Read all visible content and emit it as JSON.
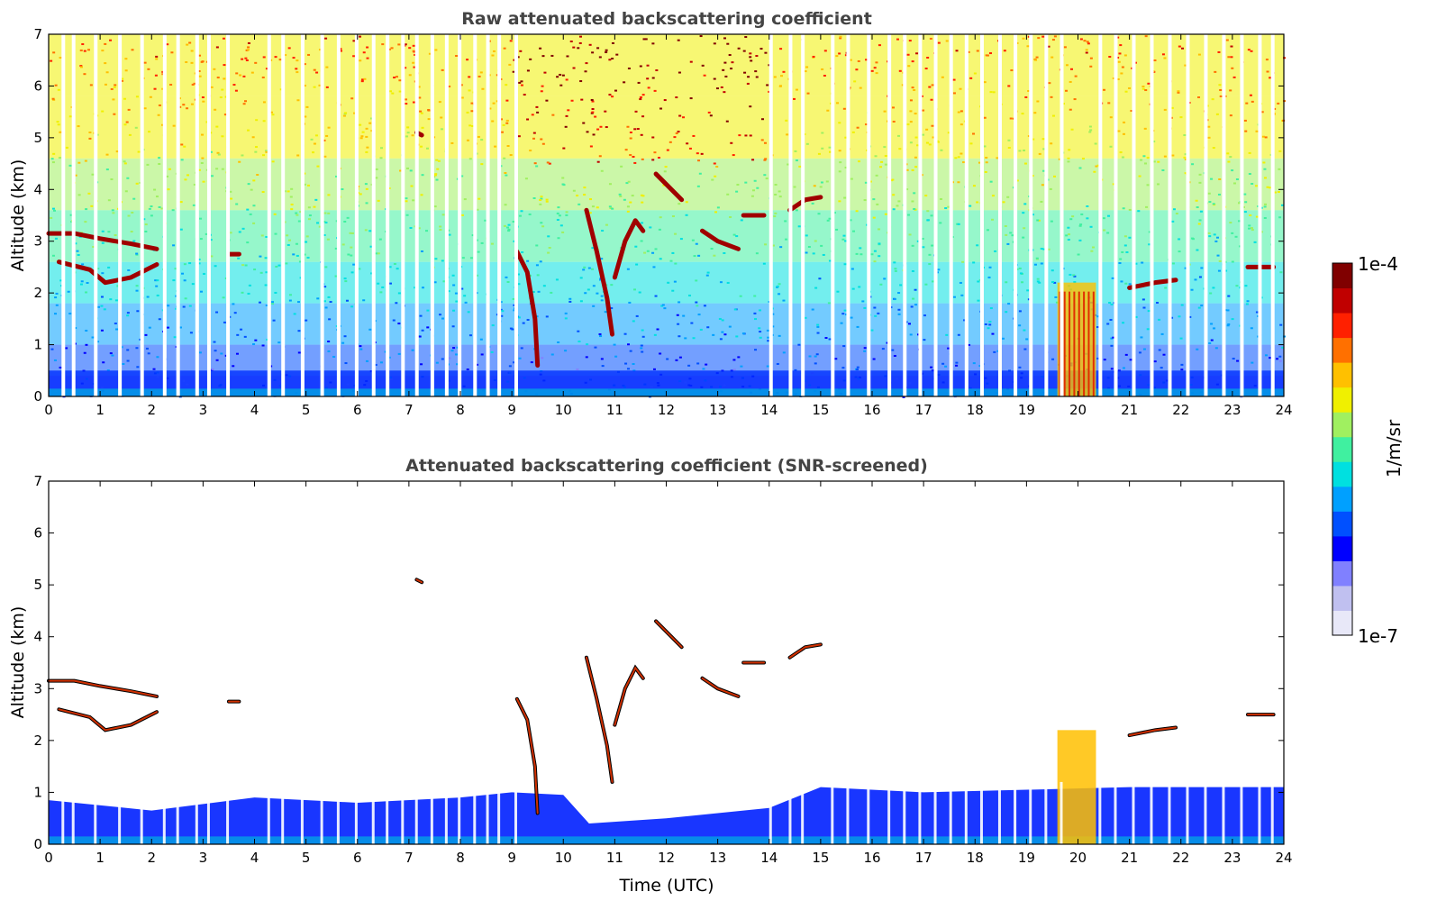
{
  "chart_data": [
    {
      "type": "heatmap",
      "title": "Raw attenuated backscattering coefficient",
      "xlabel": "",
      "ylabel": "Altitude (km)",
      "xlim": [
        0,
        24
      ],
      "ylim": [
        0,
        7
      ],
      "x_ticks": [
        "0",
        "1",
        "2",
        "3",
        "4",
        "5",
        "6",
        "7",
        "8",
        "9",
        "10",
        "11",
        "12",
        "13",
        "14",
        "15",
        "16",
        "17",
        "18",
        "19",
        "20",
        "21",
        "22",
        "23",
        "24"
      ],
      "y_ticks": [
        "0",
        "1",
        "2",
        "3",
        "4",
        "5",
        "6",
        "7"
      ],
      "data_gaps_hours": [
        0.25,
        0.45,
        0.88,
        1.35,
        1.78,
        2.22,
        2.48,
        2.85,
        3.08,
        3.45,
        4.25,
        4.52,
        4.9,
        5.28,
        5.6,
        5.95,
        6.28,
        6.55,
        6.85,
        7.12,
        7.42,
        7.7,
        7.95,
        8.25,
        8.5,
        8.72,
        9.05,
        14.0,
        14.38,
        14.62,
        15.2,
        15.5,
        15.9,
        16.3,
        16.6,
        16.9,
        17.2,
        17.5,
        17.8,
        18.1,
        18.45,
        18.75,
        19.05,
        19.35,
        19.65,
        20.4,
        20.7,
        21.05,
        21.4,
        21.75,
        22.1,
        22.45,
        22.8,
        23.15,
        23.5,
        23.75
      ],
      "features": [
        {
          "kind": "boundary-layer aerosol",
          "x_range": [
            0,
            24
          ],
          "y_range": [
            0,
            0.5
          ]
        },
        {
          "kind": "cloud layer",
          "points": [
            [
              0,
              3.15
            ],
            [
              0.5,
              3.15
            ],
            [
              1.0,
              3.05
            ],
            [
              1.6,
              2.95
            ],
            [
              2.1,
              2.85
            ]
          ]
        },
        {
          "kind": "cloud layer",
          "points": [
            [
              0.2,
              2.6
            ],
            [
              0.8,
              2.45
            ],
            [
              1.1,
              2.2
            ],
            [
              1.6,
              2.3
            ],
            [
              2.1,
              2.55
            ]
          ]
        },
        {
          "kind": "cloud layer",
          "points": [
            [
              3.5,
              2.75
            ],
            [
              3.7,
              2.75
            ]
          ]
        },
        {
          "kind": "cloud layer",
          "points": [
            [
              7.15,
              5.1
            ],
            [
              7.25,
              5.05
            ]
          ]
        },
        {
          "kind": "plume",
          "points": [
            [
              9.1,
              2.8
            ],
            [
              9.3,
              2.4
            ],
            [
              9.45,
              1.5
            ],
            [
              9.5,
              0.6
            ]
          ]
        },
        {
          "kind": "plume",
          "points": [
            [
              10.45,
              3.6
            ],
            [
              10.65,
              2.8
            ],
            [
              10.85,
              1.9
            ],
            [
              10.95,
              1.2
            ]
          ]
        },
        {
          "kind": "plume",
          "points": [
            [
              11.0,
              2.3
            ],
            [
              11.2,
              3.0
            ],
            [
              11.4,
              3.4
            ],
            [
              11.55,
              3.2
            ]
          ]
        },
        {
          "kind": "cloud layer",
          "points": [
            [
              11.8,
              4.3
            ],
            [
              12.1,
              4.0
            ],
            [
              12.3,
              3.8
            ]
          ]
        },
        {
          "kind": "cloud layer",
          "points": [
            [
              12.7,
              3.2
            ],
            [
              13.0,
              3.0
            ],
            [
              13.4,
              2.85
            ]
          ]
        },
        {
          "kind": "cloud layer",
          "points": [
            [
              13.5,
              3.5
            ],
            [
              13.9,
              3.5
            ]
          ]
        },
        {
          "kind": "cloud layer",
          "points": [
            [
              14.4,
              3.6
            ],
            [
              14.7,
              3.8
            ],
            [
              15.0,
              3.85
            ]
          ]
        },
        {
          "kind": "precipitation",
          "x_range": [
            19.6,
            20.35
          ],
          "y_range": [
            0,
            2.2
          ]
        },
        {
          "kind": "cloud layer",
          "points": [
            [
              21.0,
              2.1
            ],
            [
              21.5,
              2.2
            ],
            [
              21.9,
              2.25
            ]
          ]
        },
        {
          "kind": "cloud layer",
          "points": [
            [
              23.3,
              2.5
            ],
            [
              23.8,
              2.5
            ]
          ]
        }
      ]
    },
    {
      "type": "heatmap",
      "title": "Attenuated backscattering coefficient (SNR-screened)",
      "xlabel": "Time (UTC)",
      "ylabel": "Altitude (km)",
      "xlim": [
        0,
        24
      ],
      "ylim": [
        0,
        7
      ],
      "x_ticks": [
        "0",
        "1",
        "2",
        "3",
        "4",
        "5",
        "6",
        "7",
        "8",
        "9",
        "10",
        "11",
        "12",
        "13",
        "14",
        "15",
        "16",
        "17",
        "18",
        "19",
        "20",
        "21",
        "22",
        "23",
        "24"
      ],
      "y_ticks": [
        "0",
        "1",
        "2",
        "3",
        "4",
        "5",
        "6",
        "7"
      ],
      "boundary_layer_top_km": [
        [
          0,
          0.85
        ],
        [
          2,
          0.65
        ],
        [
          4,
          0.9
        ],
        [
          6,
          0.8
        ],
        [
          8,
          0.9
        ],
        [
          9,
          1.0
        ],
        [
          10,
          0.95
        ],
        [
          10.5,
          0.4
        ],
        [
          12,
          0.5
        ],
        [
          14,
          0.7
        ],
        [
          15,
          1.1
        ],
        [
          17,
          1.0
        ],
        [
          19,
          1.05
        ],
        [
          21,
          1.1
        ],
        [
          24,
          1.1
        ]
      ]
    }
  ],
  "colorbar": {
    "label": "1/m/sr",
    "max_label": "1e-4",
    "min_label": "1e-7",
    "colors": [
      "#e8e8f8",
      "#c0c0f0",
      "#8080ff",
      "#0000ff",
      "#0050ff",
      "#00a0ff",
      "#00e0e0",
      "#40f0a0",
      "#a0f060",
      "#f0f000",
      "#ffc000",
      "#ff7000",
      "#ff2000",
      "#c00000",
      "#800000"
    ]
  }
}
